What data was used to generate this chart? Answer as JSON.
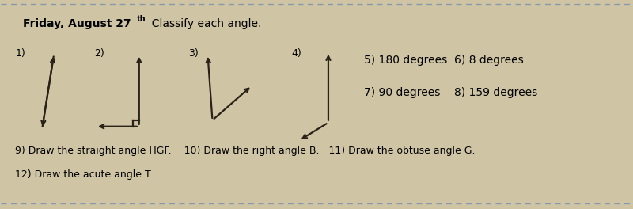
{
  "bg_color": "#cfc5a5",
  "line_color": "#2a2218",
  "dashed_color": "#8899aa",
  "title_bold": "Friday, August 27",
  "title_super": "th",
  "title_regular": "  Classify each angle.",
  "text_5_6": "5) 180 degrees  6) 8 degrees",
  "text_7_8": "7) 90 degrees    8) 159 degrees",
  "text_9": "9) Draw the straight angle HGF.    10) Draw the right angle B.   11) Draw the obtuse angle G.",
  "text_12": "12) Draw the acute angle T.",
  "lw": 1.6,
  "arrow_ms": 9
}
